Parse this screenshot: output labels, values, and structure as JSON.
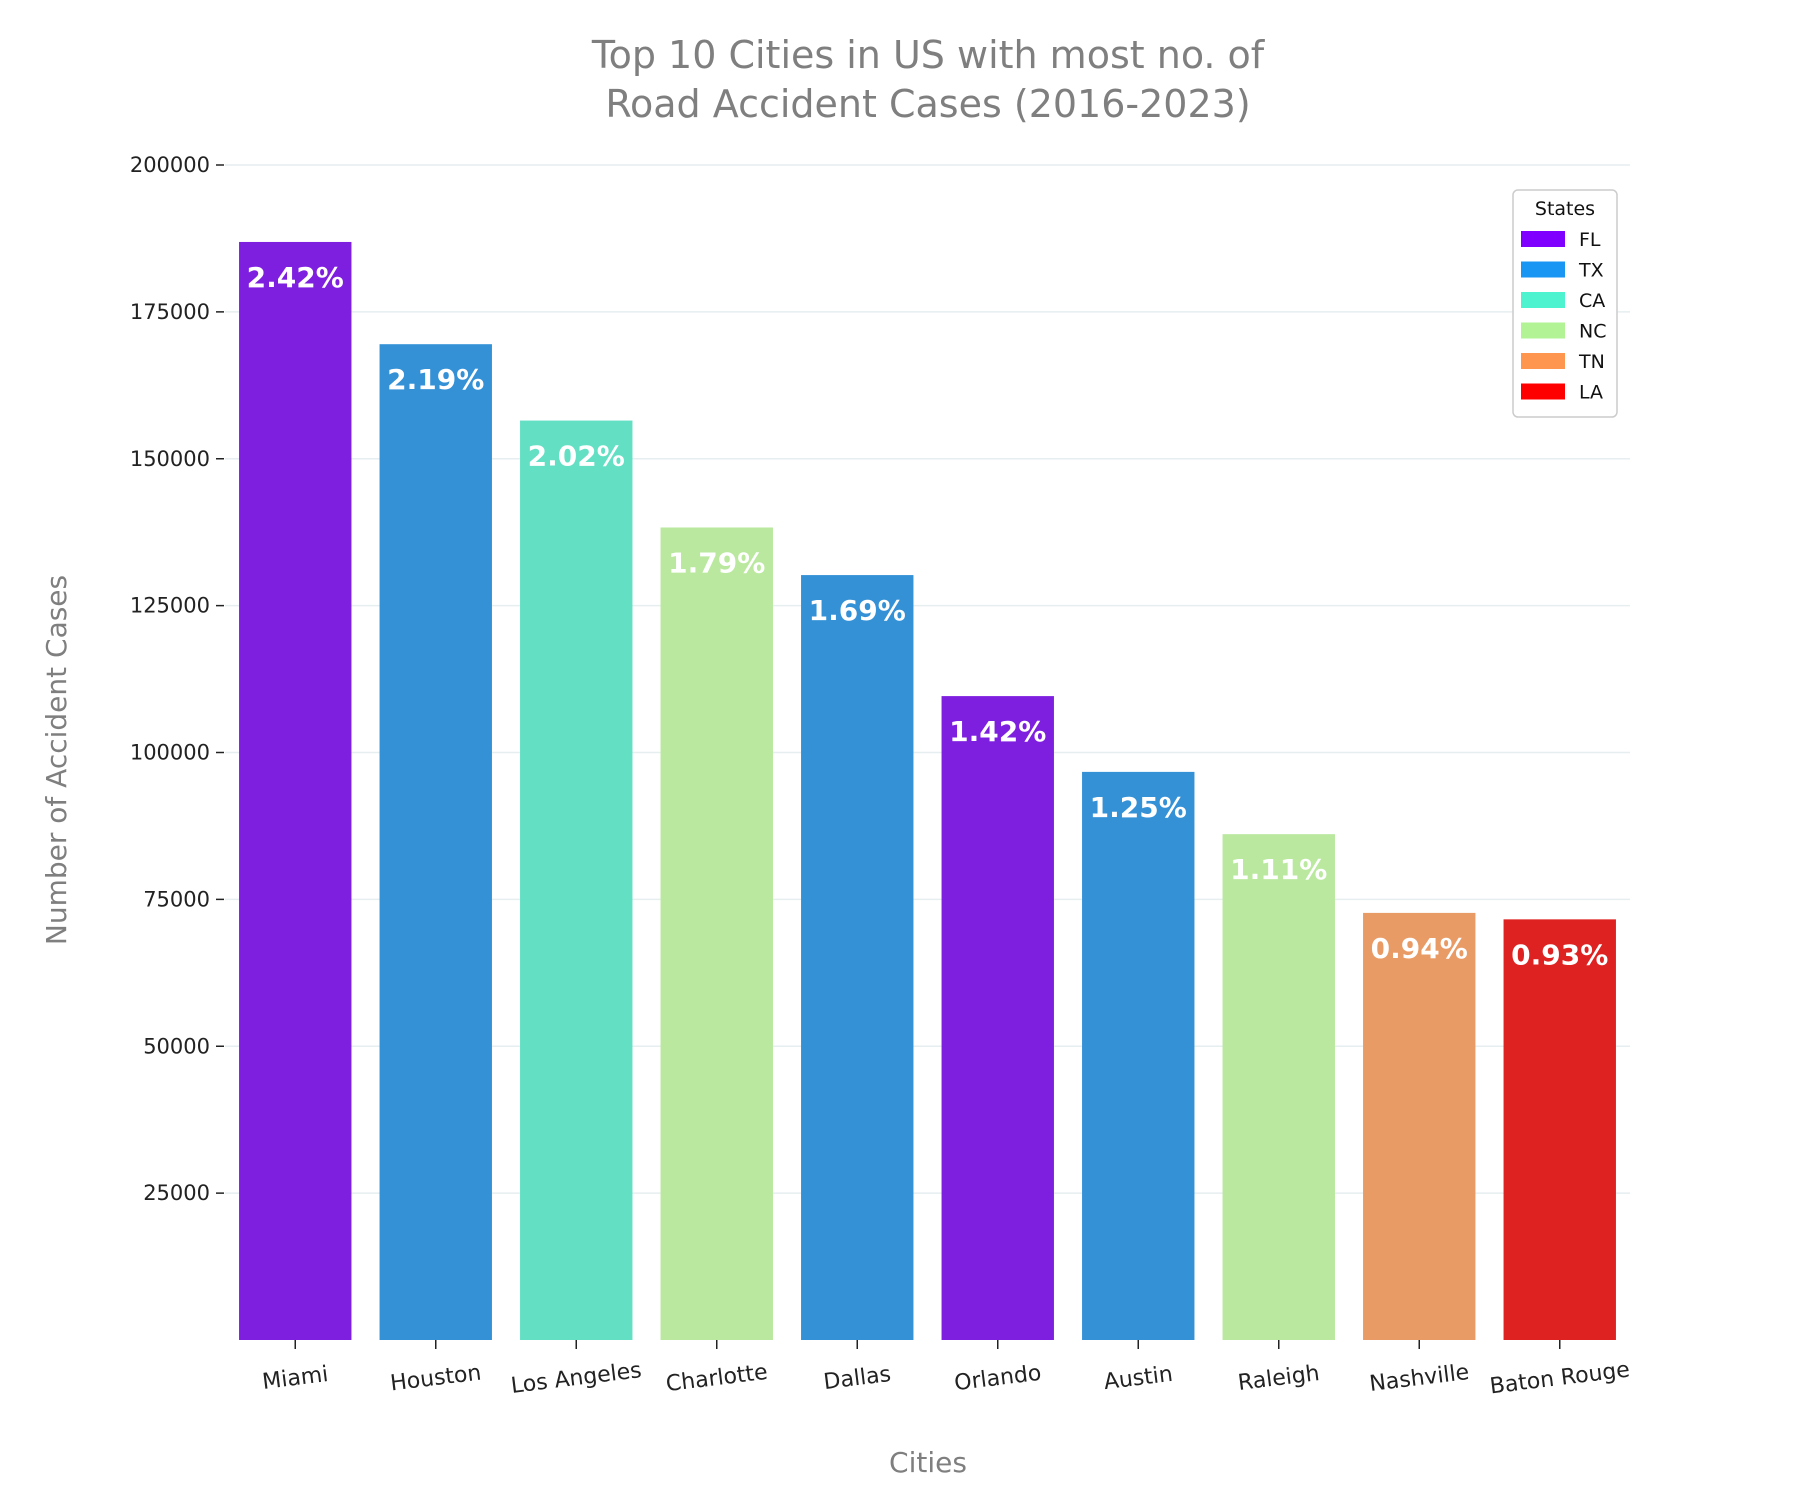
{
  "chart_data": {
    "type": "bar",
    "title_lines": [
      "Top 10 Cities in US with most no. of",
      "Road Accident Cases (2016-2023)"
    ],
    "xlabel": "Cities",
    "ylabel": "Number of Accident Cases",
    "ylim": [
      0,
      200000
    ],
    "yticks": [
      25000,
      50000,
      75000,
      100000,
      125000,
      150000,
      175000,
      200000
    ],
    "grid": "horizontal",
    "categories": [
      "Miami",
      "Houston",
      "Los Angeles",
      "Charlotte",
      "Dallas",
      "Orlando",
      "Austin",
      "Raleigh",
      "Nashville",
      "Baton Rouge"
    ],
    "values": [
      186900,
      169500,
      156500,
      138300,
      130200,
      109600,
      96700,
      86100,
      72700,
      71600
    ],
    "bar_labels": [
      "2.42%",
      "2.19%",
      "2.02%",
      "1.79%",
      "1.69%",
      "1.42%",
      "1.25%",
      "1.11%",
      "0.94%",
      "0.93%"
    ],
    "bar_states": [
      "FL",
      "TX",
      "CA",
      "NC",
      "TX",
      "FL",
      "TX",
      "NC",
      "TN",
      "LA"
    ],
    "legend": {
      "title": "States",
      "placement": "top-right",
      "entries": [
        {
          "label": "FL",
          "color": "#8000ff"
        },
        {
          "label": "TX",
          "color": "#1996f3"
        },
        {
          "label": "CA",
          "color": "#4df3ce"
        },
        {
          "label": "NC",
          "color": "#b2f396"
        },
        {
          "label": "TN",
          "color": "#ff964f"
        },
        {
          "label": "LA",
          "color": "#ff0000"
        }
      ]
    },
    "bar_colors": {
      "FL": "#7e1fe0",
      "TX": "#3591d6",
      "CA": "#63dfc4",
      "NC": "#b9e89e",
      "TN": "#e99b66",
      "LA": "#de2222"
    }
  }
}
